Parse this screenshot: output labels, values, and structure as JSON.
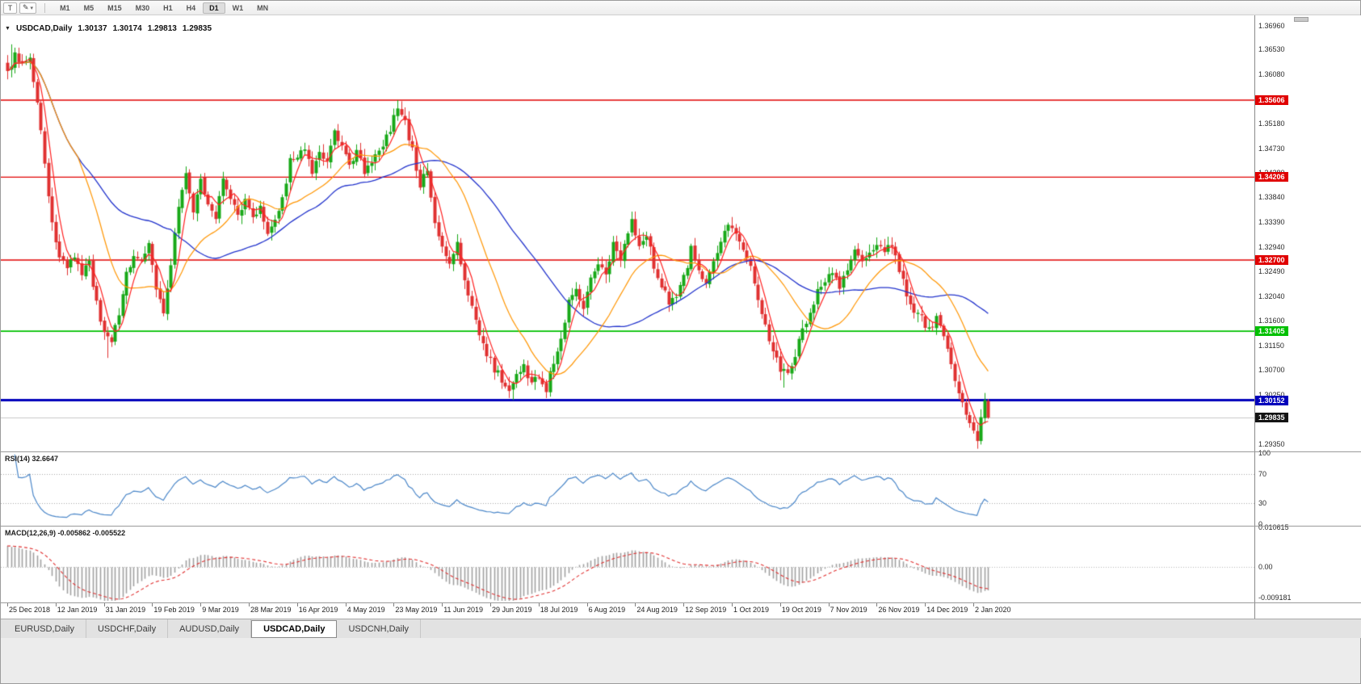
{
  "toolbar": {
    "text_tool_icon": "T",
    "draw_tool_icon": "✎",
    "dropdown_icon": "▾",
    "timeframes": [
      "M1",
      "M5",
      "M15",
      "M30",
      "H1",
      "H4",
      "D1",
      "W1",
      "MN"
    ],
    "active_timeframe": "D1"
  },
  "chart_header": {
    "collapse_icon": "▼",
    "symbol": "USDCAD,Daily",
    "open": "1.30137",
    "high": "1.30174",
    "low": "1.29813",
    "close": "1.29835"
  },
  "indicators": {
    "rsi_label": "RSI(14) 32.6647",
    "macd_label": "MACD(12,26,9) -0.005862 -0.005522"
  },
  "tabs": [
    {
      "label": "EURUSD,Daily",
      "active": false
    },
    {
      "label": "USDCHF,Daily",
      "active": false
    },
    {
      "label": "AUDUSD,Daily",
      "active": false
    },
    {
      "label": "USDCAD,Daily",
      "active": true
    },
    {
      "label": "USDCNH,Daily",
      "active": false
    }
  ],
  "chart_data": {
    "type": "candlestick",
    "symbol": "USDCAD",
    "timeframe": "Daily",
    "candle_up_color": "#17a817",
    "candle_down_color": "#e03030",
    "y_axis": {
      "min": 1.2925,
      "max": 1.37,
      "ticks": [
        "1.36960",
        "1.36530",
        "1.36080",
        "1.35630",
        "1.35180",
        "1.34730",
        "1.34280",
        "1.33840",
        "1.33390",
        "1.32940",
        "1.32490",
        "1.32040",
        "1.31600",
        "1.31150",
        "1.30700",
        "1.30250",
        "1.29800",
        "1.29350"
      ]
    },
    "x_labels": [
      "25 Dec 2018",
      "12 Jan 2019",
      "31 Jan 2019",
      "19 Feb 2019",
      "9 Mar 2019",
      "28 Mar 2019",
      "16 Apr 2019",
      "4 May 2019",
      "23 May 2019",
      "11 Jun 2019",
      "29 Jun 2019",
      "18 Jul 2019",
      "6 Aug 2019",
      "24 Aug 2019",
      "12 Sep 2019",
      "1 Oct 2019",
      "19 Oct 2019",
      "7 Nov 2019",
      "26 Nov 2019",
      "14 Dec 2019",
      "2 Jan 2020"
    ],
    "bars_per_label": 13,
    "bar_count": 265,
    "horizontal_lines": [
      {
        "price": 1.35606,
        "label": "1.35606",
        "color": "#e00000",
        "width": 1.4,
        "type": "resistance"
      },
      {
        "price": 1.34206,
        "label": "1.34206",
        "color": "#e00000",
        "width": 1.4,
        "type": "resistance"
      },
      {
        "price": 1.327,
        "label": "1.32700",
        "color": "#e00000",
        "width": 1.4,
        "type": "resistance"
      },
      {
        "price": 1.31405,
        "label": "1.31405",
        "color": "#00c000",
        "width": 1.8,
        "type": "support"
      },
      {
        "price": 1.30152,
        "label": "1.30152",
        "color": "#0000bb",
        "width": 3,
        "type": "support"
      }
    ],
    "current_price": {
      "value": 1.29835,
      "label": "1.29835",
      "line_color": "#c8c8c8"
    },
    "moving_averages": [
      {
        "period": 45,
        "color": "#2233cc",
        "width": 1.3
      },
      {
        "period": 20,
        "color": "#ff9500",
        "width": 1.2
      },
      {
        "period": 5,
        "color": "#ff2020",
        "width": 1.2
      }
    ],
    "last_bar": {
      "open": 1.30137,
      "high": 1.30174,
      "low": 1.29813,
      "close": 1.29835
    },
    "price_waypoints": [
      [
        0,
        1.361
      ],
      [
        2,
        1.3648
      ],
      [
        4,
        1.3625
      ],
      [
        6,
        1.3638
      ],
      [
        8,
        1.356
      ],
      [
        10,
        1.345
      ],
      [
        12,
        1.3335
      ],
      [
        14,
        1.327
      ],
      [
        16,
        1.3258
      ],
      [
        18,
        1.3278
      ],
      [
        20,
        1.3242
      ],
      [
        22,
        1.3268
      ],
      [
        24,
        1.319
      ],
      [
        26,
        1.3132
      ],
      [
        28,
        1.3122
      ],
      [
        30,
        1.3175
      ],
      [
        32,
        1.3245
      ],
      [
        34,
        1.3285
      ],
      [
        36,
        1.3262
      ],
      [
        38,
        1.3298
      ],
      [
        40,
        1.3215
      ],
      [
        42,
        1.318
      ],
      [
        44,
        1.326
      ],
      [
        46,
        1.3368
      ],
      [
        48,
        1.3428
      ],
      [
        50,
        1.3352
      ],
      [
        52,
        1.3415
      ],
      [
        54,
        1.3368
      ],
      [
        56,
        1.3345
      ],
      [
        58,
        1.3412
      ],
      [
        60,
        1.3378
      ],
      [
        62,
        1.3348
      ],
      [
        64,
        1.3388
      ],
      [
        66,
        1.3342
      ],
      [
        68,
        1.3368
      ],
      [
        70,
        1.3318
      ],
      [
        72,
        1.3342
      ],
      [
        74,
        1.338
      ],
      [
        76,
        1.3448
      ],
      [
        78,
        1.3452
      ],
      [
        80,
        1.3478
      ],
      [
        82,
        1.3432
      ],
      [
        84,
        1.3462
      ],
      [
        86,
        1.3442
      ],
      [
        88,
        1.3498
      ],
      [
        90,
        1.3472
      ],
      [
        92,
        1.3438
      ],
      [
        94,
        1.3468
      ],
      [
        96,
        1.3428
      ],
      [
        98,
        1.3452
      ],
      [
        100,
        1.3468
      ],
      [
        102,
        1.3492
      ],
      [
        104,
        1.3528
      ],
      [
        105,
        1.3552
      ],
      [
        107,
        1.3518
      ],
      [
        109,
        1.3472
      ],
      [
        111,
        1.3405
      ],
      [
        113,
        1.3432
      ],
      [
        115,
        1.3345
      ],
      [
        117,
        1.3292
      ],
      [
        119,
        1.3258
      ],
      [
        121,
        1.3298
      ],
      [
        123,
        1.3238
      ],
      [
        125,
        1.3185
      ],
      [
        127,
        1.3132
      ],
      [
        129,
        1.3098
      ],
      [
        131,
        1.3072
      ],
      [
        133,
        1.3052
      ],
      [
        135,
        1.3032
      ],
      [
        137,
        1.3062
      ],
      [
        139,
        1.3078
      ],
      [
        141,
        1.3048
      ],
      [
        143,
        1.3058
      ],
      [
        145,
        1.3032
      ],
      [
        147,
        1.3088
      ],
      [
        149,
        1.3132
      ],
      [
        151,
        1.3192
      ],
      [
        153,
        1.3212
      ],
      [
        155,
        1.3188
      ],
      [
        157,
        1.3242
      ],
      [
        159,
        1.3268
      ],
      [
        161,
        1.3248
      ],
      [
        163,
        1.3302
      ],
      [
        165,
        1.3272
      ],
      [
        167,
        1.3312
      ],
      [
        168,
        1.3338
      ],
      [
        170,
        1.3298
      ],
      [
        172,
        1.3318
      ],
      [
        174,
        1.3262
      ],
      [
        176,
        1.3222
      ],
      [
        178,
        1.3192
      ],
      [
        180,
        1.3208
      ],
      [
        182,
        1.3238
      ],
      [
        184,
        1.3288
      ],
      [
        186,
        1.3258
      ],
      [
        188,
        1.3228
      ],
      [
        190,
        1.3262
      ],
      [
        192,
        1.3302
      ],
      [
        194,
        1.3332
      ],
      [
        196,
        1.3312
      ],
      [
        198,
        1.3292
      ],
      [
        200,
        1.3252
      ],
      [
        202,
        1.3202
      ],
      [
        204,
        1.3152
      ],
      [
        206,
        1.3102
      ],
      [
        208,
        1.3072
      ],
      [
        210,
        1.3062
      ],
      [
        212,
        1.3098
      ],
      [
        214,
        1.3142
      ],
      [
        216,
        1.3168
      ],
      [
        218,
        1.3212
      ],
      [
        220,
        1.3232
      ],
      [
        222,
        1.3248
      ],
      [
        224,
        1.3222
      ],
      [
        226,
        1.3252
      ],
      [
        228,
        1.3282
      ],
      [
        230,
        1.3262
      ],
      [
        232,
        1.3288
      ],
      [
        234,
        1.3302
      ],
      [
        236,
        1.3282
      ],
      [
        238,
        1.3298
      ],
      [
        240,
        1.3252
      ],
      [
        242,
        1.3208
      ],
      [
        244,
        1.3172
      ],
      [
        246,
        1.3165
      ],
      [
        248,
        1.3142
      ],
      [
        250,
        1.3162
      ],
      [
        252,
        1.3128
      ],
      [
        254,
        1.3082
      ],
      [
        256,
        1.3032
      ],
      [
        258,
        1.2988
      ],
      [
        260,
        1.2958
      ],
      [
        261,
        1.2948
      ],
      [
        262,
        1.2978
      ],
      [
        263,
        1.3012
      ],
      [
        264,
        1.29835
      ]
    ],
    "feature_pins": [
      {
        "bar": 1,
        "high": 1.3662
      },
      {
        "bar": 2,
        "high": 1.3655
      },
      {
        "bar": 105,
        "high": 1.35606
      },
      {
        "bar": 27,
        "low": 1.3092
      },
      {
        "bar": 136,
        "low": 1.30155
      },
      {
        "bar": 145,
        "low": 1.3019
      },
      {
        "bar": 209,
        "low": 1.3038
      },
      {
        "bar": 261,
        "low": 1.2942
      }
    ],
    "noise_seed": 3,
    "rsi": {
      "period": 14,
      "current": 32.6647,
      "color": "#4a86c8",
      "dotted_levels": [
        70,
        30
      ],
      "scale_labels": [
        {
          "label": "100",
          "value": 100
        },
        {
          "label": "70",
          "value": 70
        },
        {
          "label": "30",
          "value": 30
        },
        {
          "label": "0",
          "value": 0
        }
      ]
    },
    "macd": {
      "fast": 12,
      "slow": 26,
      "signal": 9,
      "current": -0.005862,
      "signal_current": -0.005522,
      "range": [
        -0.009181,
        0.010615
      ],
      "histogram_color": "#a0a0a0",
      "signal_color": "#e03030",
      "scale_labels": [
        {
          "label": "0.010615",
          "value": 0.010615
        },
        {
          "label": "0.00",
          "value": 0
        },
        {
          "label": "-0.009181",
          "value": -0.009181
        }
      ]
    }
  }
}
